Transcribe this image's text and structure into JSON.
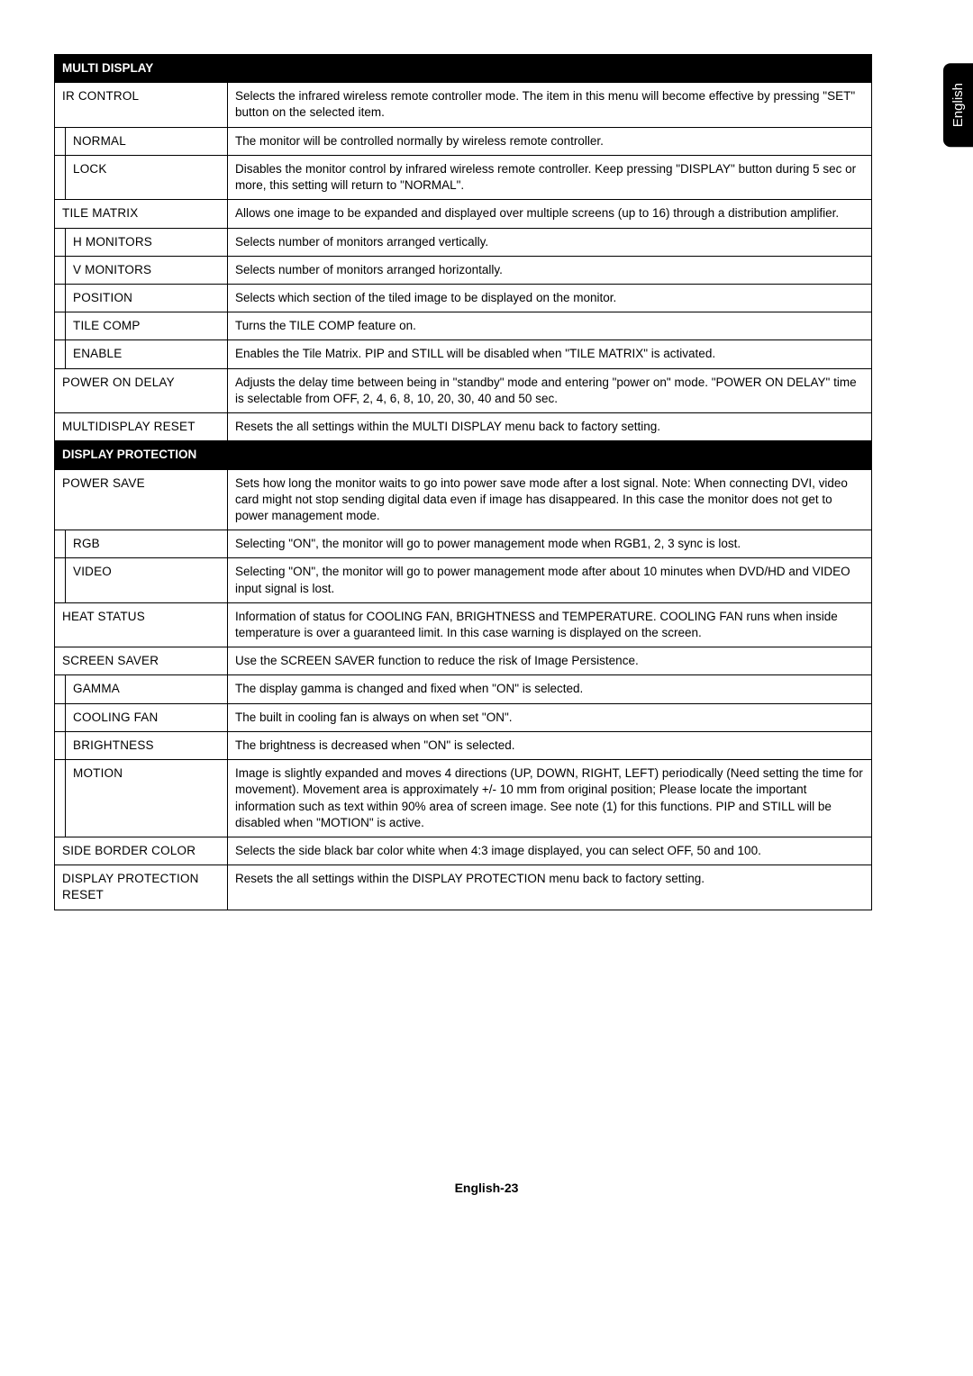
{
  "language_tab": "English",
  "page_number": "English-23",
  "sections": {
    "multi_display": {
      "header": "MULTI DISPLAY",
      "ir_control": {
        "label": "IR CONTROL",
        "desc": "Selects the infrared wireless remote controller mode.\nThe item in this menu will become effective by pressing \"SET\" button on the selected item."
      },
      "normal": {
        "label": "NORMAL",
        "desc": "The monitor will be controlled normally by wireless remote controller."
      },
      "lock": {
        "label": "LOCK",
        "desc": "Disables the monitor control by infrared wireless remote controller.\nKeep pressing \"DISPLAY\" button during 5 sec or more, this setting will return to \"NORMAL\"."
      },
      "tile_matrix": {
        "label": "TILE MATRIX",
        "desc": "Allows one image to be expanded and displayed over multiple screens (up to 16) through a distribution amplifier."
      },
      "h_monitors": {
        "label": "H MONITORS",
        "desc": "Selects number of monitors arranged vertically."
      },
      "v_monitors": {
        "label": "V MONITORS",
        "desc": "Selects number of monitors arranged horizontally."
      },
      "position": {
        "label": "POSITION",
        "desc": "Selects which section of the tiled image to be displayed on the monitor."
      },
      "tile_comp": {
        "label": "TILE COMP",
        "desc": "Turns the TILE COMP feature on."
      },
      "enable": {
        "label": "ENABLE",
        "desc": "Enables the Tile Matrix.\nPIP and STILL will be disabled when \"TILE MATRIX\" is activated."
      },
      "power_on_delay": {
        "label": "POWER ON DELAY",
        "desc": "Adjusts the delay time between being in \"standby\" mode and entering \"power on\" mode.\n\"POWER ON DELAY\" time is selectable from OFF, 2, 4, 6, 8, 10, 20, 30, 40 and 50 sec."
      },
      "multidisplay_reset": {
        "label": "MULTIDISPLAY RESET",
        "desc": "Resets the all settings within the MULTI DISPLAY menu back to factory setting."
      }
    },
    "display_protection": {
      "header": "DISPLAY PROTECTION",
      "power_save": {
        "label": "POWER SAVE",
        "desc": "Sets how long the monitor waits to go into power save mode after a lost signal.\nNote: When connecting DVI, video card might not stop sending digital data even if image has disappeared. In this case the monitor does not get to power management mode."
      },
      "rgb": {
        "label": "RGB",
        "desc": "Selecting \"ON\", the monitor will go to power management mode when RGB1, 2, 3 sync is lost."
      },
      "video": {
        "label": "VIDEO",
        "desc": "Selecting \"ON\", the monitor will go to power management mode after about 10 minutes when DVD/HD and VIDEO input signal is lost."
      },
      "heat_status": {
        "label": "HEAT STATUS",
        "desc": "Information of status for COOLING FAN, BRIGHTNESS and TEMPERATURE. COOLING FAN runs when inside temperature is over a guaranteed limit. In this case warning is displayed on the screen."
      },
      "screen_saver": {
        "label": "SCREEN SAVER",
        "desc": "Use the SCREEN SAVER function to reduce the risk of Image Persistence."
      },
      "gamma": {
        "label": "GAMMA",
        "desc": "The display gamma is changed and fixed when \"ON\" is selected."
      },
      "cooling_fan": {
        "label": "COOLING FAN",
        "desc": "The built in cooling fan is always on when set \"ON\"."
      },
      "brightness": {
        "label": "BRIGHTNESS",
        "desc": "The brightness is decreased when \"ON\" is selected."
      },
      "motion": {
        "label": "MOTION",
        "desc": "Image is slightly expanded and moves 4 directions (UP, DOWN, RIGHT, LEFT) periodically (Need setting the time for movement).\nMovement area is approximately +/- 10 mm from original position;\nPlease locate the important information such as text within 90% area of screen image.\nSee note (1) for this functions. PIP and STILL will be disabled when \"MOTION\" is active."
      },
      "side_border_color": {
        "label": "SIDE BORDER COLOR",
        "desc": "Selects the side black bar color white when 4:3 image displayed, you can select OFF, 50 and 100."
      },
      "display_protection_reset": {
        "label": "DISPLAY PROTECTION RESET",
        "desc": "Resets the all settings within the DISPLAY PROTECTION menu back to factory setting."
      }
    }
  }
}
